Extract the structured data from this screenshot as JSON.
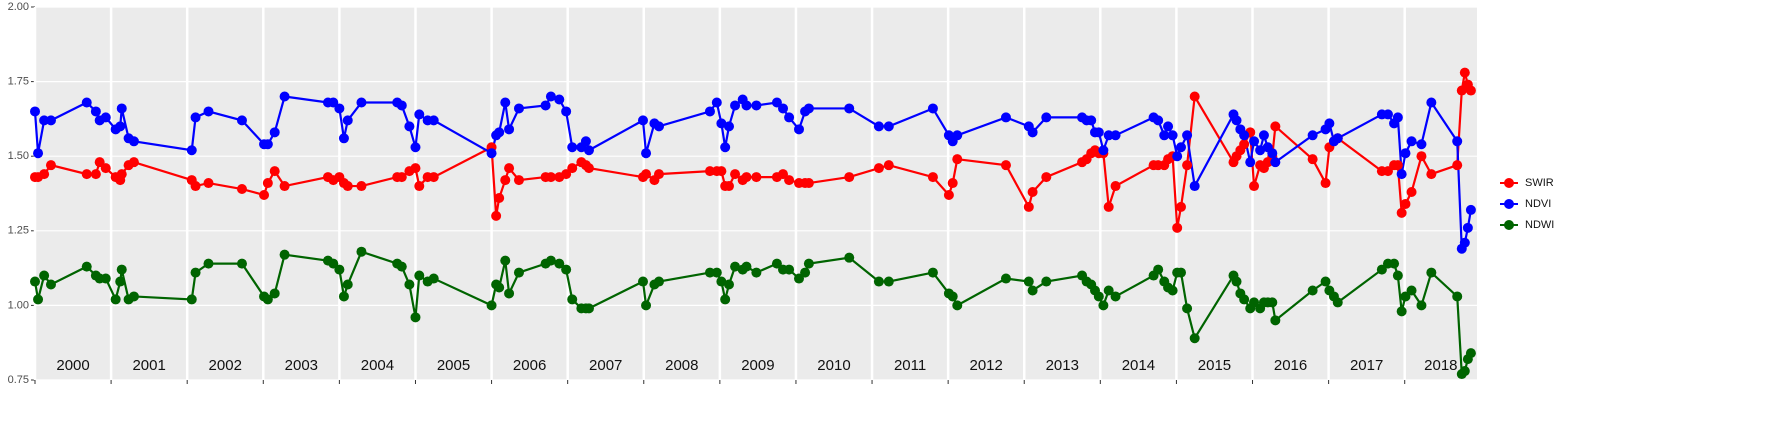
{
  "chart_data": {
    "type": "line",
    "x": [
      2000.0,
      2000.04,
      2000.12,
      2000.21,
      2000.68,
      2000.8,
      2000.85,
      2000.93,
      2001.06,
      2001.12,
      2001.14,
      2001.23,
      2001.3,
      2002.06,
      2002.11,
      2002.28,
      2002.72,
      2003.01,
      2003.06,
      2003.15,
      2003.28,
      2003.85,
      2003.92,
      2004.0,
      2004.06,
      2004.11,
      2004.29,
      2004.76,
      2004.82,
      2004.92,
      2005.0,
      2005.05,
      2005.16,
      2005.24,
      2006.0,
      2006.06,
      2006.1,
      2006.18,
      2006.23,
      2006.36,
      2006.71,
      2006.78,
      2006.89,
      2006.98,
      2007.06,
      2007.18,
      2007.24,
      2007.28,
      2007.99,
      2008.03,
      2008.14,
      2008.2,
      2008.87,
      2008.96,
      2009.02,
      2009.07,
      2009.12,
      2009.2,
      2009.3,
      2009.35,
      2009.48,
      2009.75,
      2009.83,
      2009.91,
      2010.04,
      2010.12,
      2010.17,
      2010.7,
      2011.09,
      2011.22,
      2011.8,
      2012.01,
      2012.06,
      2012.12,
      2012.76,
      2013.06,
      2013.11,
      2013.29,
      2013.76,
      2013.82,
      2013.88,
      2013.93,
      2013.98,
      2014.04,
      2014.11,
      2014.2,
      2014.7,
      2014.76,
      2014.84,
      2014.89,
      2014.95,
      2015.01,
      2015.06,
      2015.14,
      2015.24,
      2015.75,
      2015.79,
      2015.84,
      2015.89,
      2015.97,
      2016.02,
      2016.1,
      2016.15,
      2016.2,
      2016.26,
      2016.3,
      2016.79,
      2016.96,
      2017.01,
      2017.07,
      2017.12,
      2017.7,
      2017.78,
      2017.86,
      2017.91,
      2017.96,
      2018.01,
      2018.09,
      2018.22,
      2018.35,
      2018.69,
      2018.75,
      2018.79,
      2018.83,
      2018.87
    ],
    "series": [
      {
        "name": "SWIR",
        "color": "#ff0000",
        "values": [
          1.43,
          1.43,
          1.44,
          1.47,
          1.44,
          1.44,
          1.48,
          1.46,
          1.43,
          1.42,
          1.44,
          1.47,
          1.48,
          1.42,
          1.4,
          1.41,
          1.39,
          1.37,
          1.41,
          1.45,
          1.4,
          1.43,
          1.42,
          1.43,
          1.41,
          1.4,
          1.4,
          1.43,
          1.43,
          1.45,
          1.46,
          1.4,
          1.43,
          1.43,
          1.53,
          1.3,
          1.36,
          1.42,
          1.46,
          1.42,
          1.43,
          1.43,
          1.43,
          1.44,
          1.46,
          1.48,
          1.47,
          1.46,
          1.43,
          1.44,
          1.42,
          1.44,
          1.45,
          1.45,
          1.45,
          1.4,
          1.4,
          1.44,
          1.42,
          1.43,
          1.43,
          1.43,
          1.44,
          1.42,
          1.41,
          1.41,
          1.41,
          1.43,
          1.46,
          1.47,
          1.43,
          1.37,
          1.41,
          1.49,
          1.47,
          1.33,
          1.38,
          1.43,
          1.48,
          1.49,
          1.51,
          1.52,
          1.51,
          1.51,
          1.33,
          1.4,
          1.47,
          1.47,
          1.47,
          1.49,
          1.5,
          1.26,
          1.33,
          1.47,
          1.7,
          1.48,
          1.5,
          1.52,
          1.54,
          1.58,
          1.4,
          1.47,
          1.46,
          1.48,
          1.5,
          1.6,
          1.49,
          1.41,
          1.53,
          1.55,
          1.56,
          1.45,
          1.45,
          1.47,
          1.47,
          1.31,
          1.34,
          1.38,
          1.5,
          1.44,
          1.47,
          1.72,
          1.78,
          1.74,
          1.72
        ]
      },
      {
        "name": "NDVI",
        "color": "#0000ff",
        "values": [
          1.65,
          1.51,
          1.62,
          1.62,
          1.68,
          1.65,
          1.62,
          1.63,
          1.59,
          1.6,
          1.66,
          1.56,
          1.55,
          1.52,
          1.63,
          1.65,
          1.62,
          1.54,
          1.54,
          1.58,
          1.7,
          1.68,
          1.68,
          1.66,
          1.56,
          1.62,
          1.68,
          1.68,
          1.67,
          1.6,
          1.53,
          1.64,
          1.62,
          1.62,
          1.51,
          1.57,
          1.58,
          1.68,
          1.59,
          1.66,
          1.67,
          1.7,
          1.69,
          1.65,
          1.53,
          1.53,
          1.55,
          1.52,
          1.62,
          1.51,
          1.61,
          1.6,
          1.65,
          1.68,
          1.61,
          1.53,
          1.6,
          1.67,
          1.69,
          1.67,
          1.67,
          1.68,
          1.66,
          1.63,
          1.59,
          1.65,
          1.66,
          1.66,
          1.6,
          1.6,
          1.66,
          1.57,
          1.55,
          1.57,
          1.63,
          1.6,
          1.58,
          1.63,
          1.63,
          1.62,
          1.62,
          1.58,
          1.58,
          1.52,
          1.57,
          1.57,
          1.63,
          1.62,
          1.57,
          1.6,
          1.57,
          1.5,
          1.53,
          1.57,
          1.4,
          1.64,
          1.62,
          1.59,
          1.57,
          1.48,
          1.55,
          1.52,
          1.57,
          1.53,
          1.51,
          1.48,
          1.57,
          1.59,
          1.61,
          1.55,
          1.56,
          1.64,
          1.64,
          1.61,
          1.63,
          1.44,
          1.51,
          1.55,
          1.54,
          1.68,
          1.55,
          1.19,
          1.21,
          1.26,
          1.32
        ]
      },
      {
        "name": "NDWI",
        "color": "#006400",
        "values": [
          1.08,
          1.02,
          1.1,
          1.07,
          1.13,
          1.1,
          1.09,
          1.09,
          1.02,
          1.08,
          1.12,
          1.02,
          1.03,
          1.02,
          1.11,
          1.14,
          1.14,
          1.03,
          1.02,
          1.04,
          1.17,
          1.15,
          1.14,
          1.12,
          1.03,
          1.07,
          1.18,
          1.14,
          1.13,
          1.07,
          0.96,
          1.1,
          1.08,
          1.09,
          1.0,
          1.07,
          1.06,
          1.15,
          1.04,
          1.11,
          1.14,
          1.15,
          1.14,
          1.12,
          1.02,
          0.99,
          0.99,
          0.99,
          1.08,
          1.0,
          1.07,
          1.08,
          1.11,
          1.11,
          1.08,
          1.02,
          1.07,
          1.13,
          1.12,
          1.13,
          1.11,
          1.14,
          1.12,
          1.12,
          1.09,
          1.11,
          1.14,
          1.16,
          1.08,
          1.08,
          1.11,
          1.04,
          1.03,
          1.0,
          1.09,
          1.08,
          1.05,
          1.08,
          1.1,
          1.08,
          1.07,
          1.05,
          1.03,
          1.0,
          1.05,
          1.03,
          1.1,
          1.12,
          1.08,
          1.06,
          1.05,
          1.11,
          1.11,
          0.99,
          0.89,
          1.1,
          1.08,
          1.04,
          1.02,
          0.99,
          1.01,
          0.99,
          1.01,
          1.01,
          1.01,
          0.95,
          1.05,
          1.08,
          1.05,
          1.03,
          1.01,
          1.12,
          1.14,
          1.14,
          1.1,
          0.98,
          1.03,
          1.05,
          1.0,
          1.11,
          1.03,
          0.77,
          0.78,
          0.82,
          0.84
        ]
      }
    ],
    "xlim": [
      2000,
      2018.95
    ],
    "xticks": [
      2000,
      2001,
      2002,
      2003,
      2004,
      2005,
      2006,
      2007,
      2008,
      2009,
      2010,
      2011,
      2012,
      2013,
      2014,
      2015,
      2016,
      2017,
      2018
    ],
    "ylim": [
      0.75,
      2.0
    ],
    "yticks": [
      0.75,
      {
        "value": 1.0,
        "label": "1.00"
      },
      1.25,
      {
        "value": 1.5,
        "label": "1.50"
      },
      1.75,
      {
        "value": 2.0,
        "label": "2.00"
      }
    ],
    "grid": true
  }
}
